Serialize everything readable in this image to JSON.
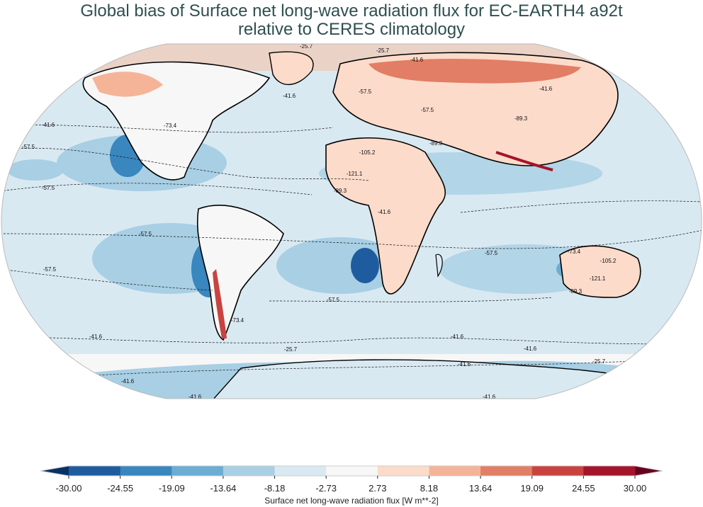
{
  "title": {
    "line1": "Global bias of Surface net long-wave radiation flux for EC-EARTH4 a92t",
    "line2": "relative to CERES climatology"
  },
  "map": {
    "projection": "robinson",
    "ocean_bias_color": "#d8e8f1",
    "coastline_color": "#000000",
    "contour_labels": [
      "-25.7",
      "-25.7",
      "-41.6",
      "-41.6",
      "-57.5",
      "-57.5",
      "-41.6",
      "-73.4",
      "-57.5",
      "-57.5",
      "-89.3",
      "-105.2",
      "-121.1",
      "-89.3",
      "-41.6",
      "-57.5",
      "-57.5",
      "-73.4",
      "-105.2",
      "-121.1",
      "-89.3",
      "-57.5",
      "-57.5",
      "-41.6",
      "-41.6",
      "-41.6",
      "-25.7",
      "-41.6",
      "-41.6",
      "-25.7",
      "-41.6",
      "-41.6",
      "-89.3",
      "-41.6",
      "-73.4"
    ]
  },
  "colorbar": {
    "label": "Surface net long-wave radiation flux [W m**-2]",
    "ticks": [
      "-30.00",
      "-24.55",
      "-19.09",
      "-13.64",
      "-8.18",
      "-2.73",
      "2.73",
      "8.18",
      "13.64",
      "19.09",
      "24.55",
      "30.00"
    ],
    "colors": [
      "#1f5c9f",
      "#3a86bf",
      "#6badd3",
      "#a8cfe4",
      "#d9e9f2",
      "#f7f7f7",
      "#fcdbca",
      "#f5b498",
      "#e27e65",
      "#c8433f",
      "#a4142b"
    ],
    "under_color": "#073264",
    "over_color": "#67001f",
    "extend": "both"
  }
}
